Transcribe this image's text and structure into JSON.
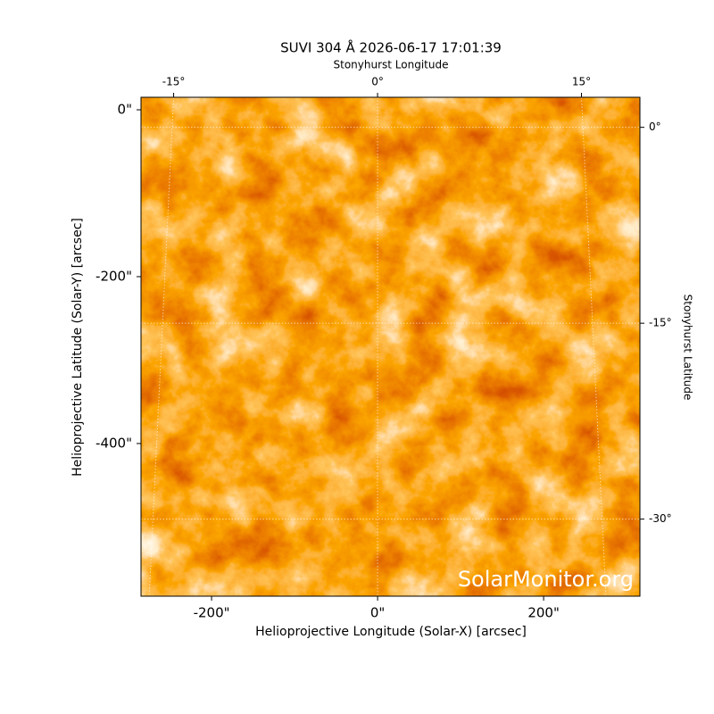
{
  "chart_data": {
    "type": "image",
    "title": "SUVI 304 Å 2026-06-17 17:01:39",
    "xlabel": "Helioprojective Longitude (Solar-X) [arcsec]",
    "ylabel": "Helioprojective Latitude (Solar-Y) [arcsec]",
    "x2label": "Stonyhurst Longitude",
    "y2label": "Stonyhurst Latitude",
    "watermark": "SolarMonitor.org",
    "xlim": [
      -285,
      316
    ],
    "ylim": [
      -583,
      15
    ],
    "xticks": [
      {
        "value": -200,
        "label": "-200\""
      },
      {
        "value": 0,
        "label": "0\""
      },
      {
        "value": 200,
        "label": "200\""
      }
    ],
    "yticks": [
      {
        "value": 0,
        "label": "0\""
      },
      {
        "value": -200,
        "label": "-200\""
      },
      {
        "value": -400,
        "label": "-400\""
      }
    ],
    "x2lim": [
      -17.4,
      19.3
    ],
    "y2lim": [
      2.3,
      -35.9
    ],
    "x2ticks": [
      {
        "value": -15,
        "label": "-15°"
      },
      {
        "value": 0,
        "label": "0°"
      },
      {
        "value": 15,
        "label": "15°"
      }
    ],
    "y2ticks": [
      {
        "value": 0,
        "label": "0°"
      },
      {
        "value": -15,
        "label": "-15°"
      },
      {
        "value": -30,
        "label": "-30°"
      }
    ],
    "grid": true
  }
}
